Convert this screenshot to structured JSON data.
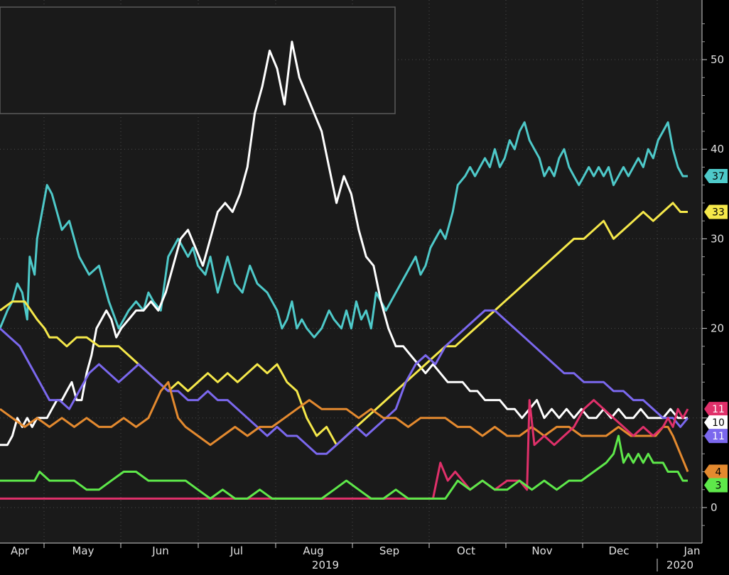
{
  "chart_data": {
    "type": "line",
    "title": "",
    "xlabel": "",
    "ylabel": "",
    "x_axis": {
      "month_labels": [
        "Apr",
        "May",
        "Jun",
        "Jul",
        "Aug",
        "Sep",
        "Oct",
        "Nov",
        "Dec",
        "Jan"
      ],
      "year_labels": [
        "2019",
        "2020"
      ]
    },
    "y_axis": {
      "side": "right",
      "ticks": [
        0,
        10,
        20,
        30,
        40,
        50
      ],
      "ylim": [
        -4,
        55
      ]
    },
    "grid": true,
    "legend": {
      "placement": "top-left",
      "entries": []
    },
    "series": [
      {
        "color": "#4ec9c9",
        "last_value": "37",
        "x": [
          0,
          3,
          5,
          7,
          9,
          11,
          12,
          14,
          15,
          17,
          19,
          21,
          23,
          25,
          28,
          32,
          36,
          40,
          44,
          48,
          52,
          55,
          58,
          60,
          62,
          65,
          68,
          72,
          76,
          78,
          80,
          83,
          85,
          88,
          90,
          92,
          95,
          98,
          101,
          104,
          108,
          110,
          112,
          114,
          116,
          118,
          120,
          122,
          124,
          127,
          130,
          133,
          135,
          138,
          140,
          142,
          144,
          146,
          148,
          150,
          152,
          154,
          156,
          158,
          160,
          162,
          164,
          166,
          168,
          170,
          172,
          174,
          176,
          178,
          180,
          183,
          185,
          188,
          190,
          192,
          194,
          196,
          198,
          200,
          202,
          204,
          206,
          208,
          210,
          212,
          214,
          216,
          218,
          220,
          222,
          224,
          226,
          228,
          230,
          232,
          234,
          236,
          238,
          240,
          242,
          244,
          246,
          248,
          250,
          252,
          254,
          256,
          258,
          260,
          262,
          264,
          266,
          268,
          270,
          272,
          274,
          276,
          278
        ],
        "y": [
          20,
          22,
          23,
          25,
          24,
          21,
          28,
          26,
          30,
          33,
          36,
          35,
          33,
          31,
          32,
          28,
          26,
          27,
          23,
          20,
          22,
          23,
          22,
          24,
          23,
          22,
          28,
          30,
          28,
          29,
          27,
          26,
          28,
          24,
          26,
          28,
          25,
          24,
          27,
          25,
          24,
          23,
          22,
          20,
          21,
          23,
          20,
          21,
          20,
          19,
          20,
          22,
          21,
          20,
          22,
          20,
          23,
          21,
          22,
          20,
          24,
          23,
          22,
          23,
          24,
          25,
          26,
          27,
          28,
          26,
          27,
          29,
          30,
          31,
          30,
          33,
          36,
          37,
          38,
          37,
          38,
          39,
          38,
          40,
          38,
          39,
          41,
          40,
          42,
          43,
          41,
          40,
          39,
          37,
          38,
          37,
          39,
          40,
          38,
          37,
          36,
          37,
          38,
          37,
          38,
          37,
          38,
          36,
          37,
          38,
          37,
          38,
          39,
          38,
          40,
          39,
          41,
          42,
          43,
          40,
          38,
          37,
          37
        ]
      },
      {
        "color": "#ffffff",
        "last_value": "10",
        "x": [
          0,
          3,
          5,
          7,
          9,
          11,
          13,
          15,
          17,
          19,
          21,
          23,
          25,
          27,
          29,
          31,
          33,
          35,
          37,
          39,
          41,
          43,
          45,
          47,
          49,
          52,
          55,
          58,
          61,
          64,
          67,
          70,
          73,
          76,
          79,
          82,
          85,
          88,
          91,
          94,
          97,
          100,
          103,
          106,
          109,
          112,
          115,
          118,
          121,
          124,
          127,
          130,
          133,
          136,
          139,
          142,
          145,
          148,
          151,
          154,
          157,
          160,
          163,
          166,
          169,
          172,
          175,
          178,
          181,
          184,
          187,
          190,
          193,
          196,
          199,
          202,
          205,
          208,
          211,
          214,
          217,
          220,
          223,
          226,
          229,
          232,
          235,
          238,
          241,
          244,
          247,
          250,
          253,
          256,
          259,
          262,
          265,
          268,
          271,
          274,
          278
        ],
        "y": [
          7,
          7,
          8,
          10,
          9,
          10,
          9,
          10,
          10,
          10,
          11,
          12,
          12,
          13,
          14,
          12,
          12,
          15,
          17,
          20,
          21,
          22,
          21,
          19,
          20,
          21,
          22,
          22,
          23,
          22,
          24,
          27,
          30,
          31,
          29,
          27,
          30,
          33,
          34,
          33,
          35,
          38,
          44,
          47,
          51,
          49,
          45,
          52,
          48,
          46,
          44,
          42,
          38,
          34,
          37,
          35,
          31,
          28,
          27,
          23,
          20,
          18,
          18,
          17,
          16,
          15,
          16,
          15,
          14,
          14,
          14,
          13,
          13,
          12,
          12,
          12,
          11,
          11,
          10,
          11,
          12,
          10,
          11,
          10,
          11,
          10,
          11,
          10,
          10,
          11,
          10,
          11,
          10,
          10,
          11,
          10,
          10,
          10,
          11,
          10,
          10
        ]
      },
      {
        "color": "#f5e84a",
        "last_value": "33",
        "x": [
          0,
          5,
          10,
          15,
          18,
          20,
          23,
          27,
          31,
          35,
          40,
          44,
          48,
          52,
          56,
          60,
          64,
          68,
          72,
          76,
          80,
          84,
          88,
          92,
          96,
          100,
          104,
          108,
          112,
          116,
          120,
          124,
          128,
          132,
          136,
          140,
          144,
          148,
          152,
          156,
          160,
          164,
          168,
          172,
          176,
          180,
          184,
          188,
          192,
          196,
          200,
          204,
          208,
          212,
          216,
          220,
          224,
          228,
          232,
          236,
          240,
          244,
          248,
          252,
          256,
          260,
          264,
          268,
          272,
          275,
          278
        ],
        "y": [
          22,
          23,
          23,
          21,
          20,
          19,
          19,
          18,
          19,
          19,
          18,
          18,
          18,
          17,
          16,
          15,
          14,
          13,
          14,
          13,
          14,
          15,
          14,
          15,
          14,
          15,
          16,
          15,
          16,
          14,
          13,
          10,
          8,
          9,
          7,
          8,
          9,
          10,
          11,
          12,
          13,
          14,
          15,
          16,
          17,
          18,
          18,
          19,
          20,
          21,
          22,
          23,
          24,
          25,
          26,
          27,
          28,
          29,
          30,
          30,
          31,
          32,
          30,
          31,
          32,
          33,
          32,
          33,
          34,
          33,
          33
        ]
      },
      {
        "color": "#7b68ee",
        "last_value": "11",
        "x": [
          0,
          4,
          8,
          12,
          16,
          20,
          24,
          28,
          32,
          36,
          40,
          44,
          48,
          52,
          56,
          60,
          64,
          68,
          72,
          76,
          80,
          84,
          88,
          92,
          96,
          100,
          104,
          108,
          112,
          116,
          120,
          124,
          128,
          132,
          136,
          140,
          144,
          148,
          152,
          156,
          160,
          164,
          168,
          172,
          176,
          180,
          184,
          188,
          192,
          196,
          200,
          204,
          208,
          212,
          216,
          220,
          224,
          228,
          232,
          236,
          240,
          244,
          248,
          252,
          256,
          260,
          264,
          268,
          272,
          275,
          278
        ],
        "y": [
          20,
          19,
          18,
          16,
          14,
          12,
          12,
          11,
          13,
          15,
          16,
          15,
          14,
          15,
          16,
          15,
          14,
          13,
          13,
          12,
          12,
          13,
          12,
          12,
          11,
          10,
          9,
          8,
          9,
          8,
          8,
          7,
          6,
          6,
          7,
          8,
          9,
          8,
          9,
          10,
          11,
          14,
          16,
          17,
          16,
          18,
          19,
          20,
          21,
          22,
          22,
          21,
          20,
          19,
          18,
          17,
          16,
          15,
          15,
          14,
          14,
          14,
          13,
          13,
          12,
          12,
          11,
          10,
          10,
          9,
          10
        ]
      },
      {
        "color": "#e48a2f",
        "last_value": "4",
        "x": [
          0,
          5,
          10,
          15,
          20,
          25,
          30,
          35,
          40,
          45,
          50,
          55,
          60,
          65,
          68,
          70,
          72,
          75,
          80,
          85,
          90,
          95,
          100,
          105,
          110,
          115,
          120,
          125,
          130,
          135,
          140,
          145,
          150,
          155,
          160,
          165,
          170,
          175,
          180,
          185,
          190,
          195,
          200,
          205,
          210,
          215,
          220,
          225,
          230,
          235,
          240,
          245,
          250,
          255,
          260,
          265,
          268,
          270,
          272,
          275,
          278
        ],
        "y": [
          11,
          10,
          9,
          10,
          9,
          10,
          9,
          10,
          9,
          9,
          10,
          9,
          10,
          13,
          14,
          12,
          10,
          9,
          8,
          7,
          8,
          9,
          8,
          9,
          9,
          10,
          11,
          12,
          11,
          11,
          11,
          10,
          11,
          10,
          10,
          9,
          10,
          10,
          10,
          9,
          9,
          8,
          9,
          8,
          8,
          9,
          8,
          9,
          9,
          8,
          8,
          8,
          9,
          8,
          8,
          8,
          9,
          9,
          8,
          6,
          4
        ]
      },
      {
        "color": "#e0306a",
        "last_value": "11",
        "x": [
          0,
          20,
          40,
          60,
          80,
          100,
          120,
          140,
          160,
          175,
          178,
          181,
          184,
          187,
          190,
          195,
          200,
          205,
          210,
          213,
          214,
          216,
          220,
          224,
          228,
          232,
          236,
          240,
          244,
          248,
          252,
          256,
          260,
          264,
          268,
          270,
          272,
          274,
          276,
          278
        ],
        "y": [
          1,
          1,
          1,
          1,
          1,
          1,
          1,
          1,
          1,
          1,
          5,
          3,
          4,
          3,
          2,
          3,
          2,
          3,
          3,
          2,
          12,
          7,
          8,
          7,
          8,
          9,
          11,
          12,
          11,
          10,
          9,
          8,
          9,
          8,
          9,
          10,
          9,
          11,
          10,
          11
        ]
      },
      {
        "color": "#5ee84a",
        "last_value": "3",
        "x": [
          0,
          5,
          10,
          14,
          16,
          20,
          25,
          30,
          35,
          40,
          45,
          50,
          55,
          60,
          65,
          70,
          75,
          80,
          85,
          90,
          95,
          100,
          105,
          110,
          115,
          120,
          125,
          130,
          135,
          140,
          145,
          150,
          155,
          160,
          165,
          170,
          175,
          180,
          185,
          190,
          195,
          200,
          205,
          210,
          215,
          220,
          225,
          230,
          235,
          240,
          245,
          248,
          250,
          252,
          254,
          256,
          258,
          260,
          262,
          264,
          266,
          268,
          270,
          272,
          274,
          276,
          278
        ],
        "y": [
          3,
          3,
          3,
          3,
          4,
          3,
          3,
          3,
          2,
          2,
          3,
          4,
          4,
          3,
          3,
          3,
          3,
          2,
          1,
          2,
          1,
          1,
          2,
          1,
          1,
          1,
          1,
          1,
          2,
          3,
          2,
          1,
          1,
          2,
          1,
          1,
          1,
          1,
          3,
          2,
          3,
          2,
          2,
          3,
          2,
          3,
          2,
          3,
          3,
          4,
          5,
          6,
          8,
          5,
          6,
          5,
          6,
          5,
          6,
          5,
          5,
          5,
          4,
          4,
          4,
          3,
          3
        ]
      }
    ]
  }
}
